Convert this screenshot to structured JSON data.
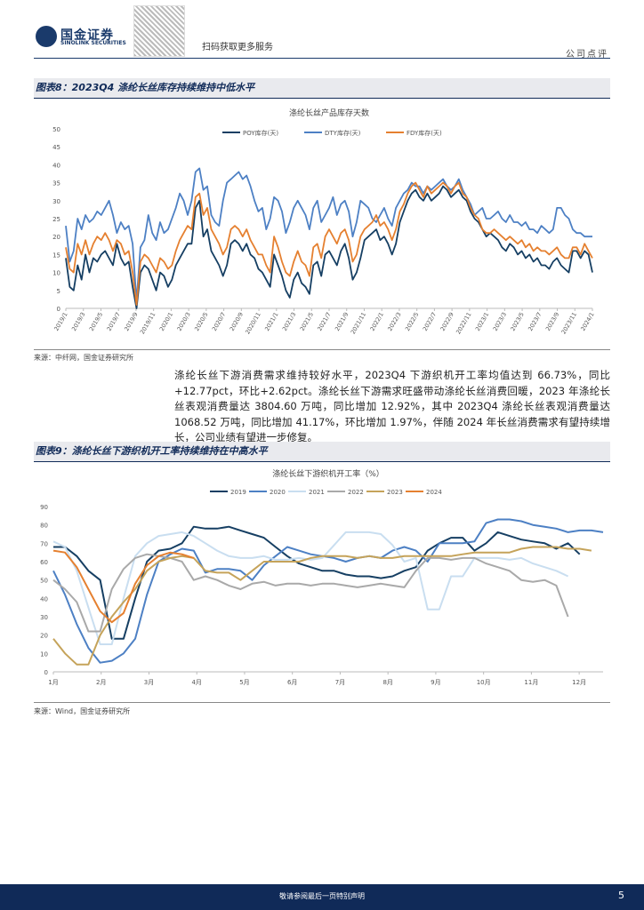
{
  "header": {
    "logo_cn": "国金证券",
    "logo_en": "SINOLINK SECURITIES",
    "qr_label": "扫码获取更多服务",
    "doc_type": "公司点评"
  },
  "figure8": {
    "title": "图表8：2023Q4 涤纶长丝库存持续维持中低水平",
    "source": "来源：中纤网，国金证券研究所"
  },
  "figure9": {
    "title": "图表9：涤纶长丝下游织机开工率持续维持在中高水平",
    "source": "来源：Wind，国金证券研究所"
  },
  "paragraph": "涤纶长丝下游消费需求维持较好水平，2023Q4 下游织机开工率均值达到 66.73%，同比+12.77pct，环比+2.62pct。涤纶长丝下游需求旺盛带动涤纶长丝消费回暖，2023 年涤纶长丝表观消费量达 3804.60 万吨，同比增加 12.92%，其中 2023Q4 涤纶长丝表观消费量达 1068.52 万吨，同比增加 41.17%，环比增加 1.97%，伴随 2024 年长丝消费需求有望持续增长，公司业绩有望进一步修复。",
  "footer": {
    "disclaimer": "敬请参阅最后一页特别声明",
    "page": "5"
  },
  "chart_data": [
    {
      "type": "line",
      "title": "涤纶长丝产品库存天数",
      "ylim": [
        0,
        50
      ],
      "yticks": [
        0,
        5,
        10,
        15,
        20,
        25,
        30,
        35,
        40,
        45,
        50
      ],
      "x_ticks": [
        "2019/1",
        "2019/3",
        "2019/5",
        "2019/7",
        "2019/9",
        "2019/11",
        "2020/1",
        "2020/3",
        "2020/5",
        "2020/7",
        "2020/9",
        "2020/11",
        "2021/1",
        "2021/3",
        "2021/5",
        "2021/7",
        "2021/9",
        "2021/11",
        "2022/1",
        "2022/3",
        "2022/5",
        "2022/7",
        "2022/9",
        "2022/11",
        "2023/1",
        "2023/3",
        "2023/5",
        "2023/7",
        "2023/9",
        "2023/11",
        "2024/1"
      ],
      "series": [
        {
          "name": "POY库存(天)",
          "color": "#163f63",
          "values": [
            14,
            6,
            5,
            12,
            8,
            15,
            10,
            14,
            13,
            15,
            16,
            14,
            12,
            18,
            14,
            12,
            13,
            6,
            0,
            10,
            12,
            11,
            8,
            5,
            10,
            9,
            6,
            8,
            12,
            14,
            16,
            18,
            18,
            28,
            30,
            20,
            22,
            16,
            14,
            12,
            9,
            12,
            18,
            19,
            18,
            16,
            18,
            15,
            14,
            11,
            10,
            8,
            6,
            15,
            12,
            9,
            5,
            3,
            8,
            10,
            7,
            6,
            4,
            12,
            13,
            9,
            15,
            16,
            14,
            12,
            16,
            18,
            14,
            8,
            10,
            14,
            19,
            20,
            21,
            22,
            19,
            20,
            18,
            15,
            18,
            24,
            27,
            30,
            32,
            33,
            31,
            30,
            32,
            30,
            31,
            32,
            34,
            33,
            31,
            32,
            33,
            31,
            30,
            27,
            25,
            24,
            22,
            20,
            21,
            20,
            19,
            17,
            16,
            18,
            17,
            15,
            16,
            14,
            15,
            13,
            14,
            12,
            12,
            11,
            13,
            14,
            12,
            11,
            10,
            16,
            16,
            14,
            16,
            15,
            10
          ]
        },
        {
          "name": "DTY库存(天)",
          "color": "#4d80c4",
          "values": [
            23,
            13,
            16,
            25,
            22,
            26,
            24,
            25,
            27,
            26,
            28,
            30,
            26,
            21,
            24,
            22,
            23,
            18,
            2,
            17,
            19,
            26,
            21,
            19,
            24,
            21,
            22,
            25,
            28,
            32,
            30,
            26,
            30,
            38,
            39,
            33,
            34,
            26,
            24,
            23,
            30,
            35,
            36,
            37,
            38,
            36,
            37,
            34,
            30,
            27,
            28,
            22,
            25,
            31,
            30,
            27,
            21,
            24,
            28,
            30,
            28,
            26,
            22,
            28,
            30,
            24,
            26,
            28,
            31,
            26,
            29,
            30,
            27,
            20,
            24,
            30,
            29,
            28,
            25,
            24,
            26,
            28,
            25,
            23,
            28,
            30,
            32,
            33,
            35,
            34,
            34,
            32,
            34,
            33,
            34,
            35,
            36,
            34,
            33,
            34,
            36,
            33,
            31,
            29,
            26,
            27,
            28,
            25,
            25,
            26,
            27,
            25,
            24,
            26,
            24,
            24,
            23,
            24,
            22,
            22,
            21,
            23,
            22,
            21,
            22,
            28,
            28,
            26,
            25,
            22,
            21,
            21,
            20,
            20,
            20
          ]
        },
        {
          "name": "FDY库存(天)",
          "color": "#e58030",
          "values": [
            17,
            11,
            10,
            18,
            15,
            19,
            15,
            18,
            20,
            19,
            21,
            19,
            16,
            19,
            18,
            15,
            16,
            10,
            1,
            13,
            15,
            14,
            12,
            10,
            14,
            13,
            11,
            12,
            16,
            19,
            21,
            23,
            22,
            31,
            32,
            26,
            28,
            22,
            20,
            18,
            15,
            17,
            22,
            23,
            22,
            20,
            22,
            19,
            17,
            15,
            15,
            12,
            10,
            20,
            17,
            13,
            10,
            9,
            13,
            16,
            13,
            12,
            9,
            17,
            18,
            14,
            20,
            22,
            20,
            18,
            21,
            22,
            19,
            13,
            15,
            20,
            22,
            23,
            24,
            26,
            23,
            24,
            22,
            19,
            22,
            27,
            29,
            32,
            34,
            35,
            33,
            31,
            34,
            32,
            33,
            34,
            35,
            34,
            32,
            34,
            35,
            32,
            31,
            28,
            26,
            25,
            22,
            21,
            21,
            22,
            21,
            20,
            19,
            20,
            19,
            18,
            19,
            17,
            18,
            16,
            17,
            16,
            16,
            15,
            16,
            17,
            15,
            14,
            14,
            17,
            17,
            15,
            18,
            16,
            14
          ]
        }
      ]
    },
    {
      "type": "line",
      "title": "涤纶长丝下游织机开工率（%）",
      "ylim": [
        0,
        90
      ],
      "yticks": [
        0,
        10,
        20,
        30,
        40,
        50,
        60,
        70,
        80,
        90
      ],
      "x_ticks": [
        "1月",
        "2月",
        "3月",
        "4月",
        "5月",
        "6月",
        "7月",
        "8月",
        "9月",
        "10月",
        "11月",
        "12月"
      ],
      "series": [
        {
          "name": "2019",
          "color": "#163f63",
          "values": [
            68,
            68,
            63,
            55,
            50,
            18,
            18,
            40,
            60,
            66,
            67,
            70,
            79,
            78,
            78,
            79,
            77,
            75,
            73,
            68,
            63,
            59,
            57,
            55,
            55,
            53,
            52,
            52,
            51,
            52,
            55,
            57,
            66,
            70,
            73,
            73,
            66,
            70,
            76,
            74,
            72,
            71,
            70,
            67,
            70,
            64
          ]
        },
        {
          "name": "2020",
          "color": "#4d80c4",
          "values": [
            55,
            42,
            26,
            13,
            5,
            6,
            10,
            18,
            42,
            60,
            64,
            67,
            66,
            54,
            56,
            56,
            55,
            50,
            58,
            63,
            68,
            66,
            64,
            63,
            62,
            60,
            62,
            63,
            62,
            66,
            68,
            66,
            60,
            70,
            70,
            70,
            71,
            81,
            83,
            83,
            82,
            80,
            79,
            78,
            76,
            77,
            77,
            76
          ]
        },
        {
          "name": "2021",
          "color": "#c9def0",
          "values": [
            71,
            68,
            55,
            35,
            15,
            15,
            40,
            63,
            70,
            74,
            75,
            76,
            74,
            70,
            66,
            63,
            62,
            62,
            63,
            61,
            61,
            62,
            61,
            62,
            69,
            76,
            76,
            76,
            75,
            69,
            60,
            62,
            34,
            34,
            52,
            52,
            62,
            62,
            62,
            61,
            62,
            59,
            57,
            55,
            52
          ]
        },
        {
          "name": "2022",
          "color": "#a9a9a9",
          "values": [
            50,
            45,
            38,
            22,
            22,
            45,
            56,
            62,
            64,
            63,
            62,
            60,
            50,
            52,
            50,
            47,
            45,
            48,
            49,
            47,
            48,
            48,
            47,
            48,
            48,
            47,
            46,
            47,
            48,
            47,
            46,
            55,
            62,
            62,
            61,
            62,
            62,
            59,
            57,
            55,
            50,
            49,
            50,
            47,
            30
          ]
        },
        {
          "name": "2023",
          "color": "#c5a35a",
          "values": [
            18,
            10,
            4,
            4,
            20,
            30,
            38,
            45,
            55,
            60,
            62,
            63,
            62,
            55,
            54,
            54,
            50,
            55,
            60,
            60,
            60,
            60,
            62,
            63,
            63,
            63,
            62,
            63,
            62,
            62,
            63,
            63,
            63,
            63,
            63,
            64,
            65,
            65,
            65,
            65,
            67,
            68,
            68,
            68,
            67,
            67,
            66
          ]
        },
        {
          "name": "2024",
          "color": "#e58030",
          "values": [
            66,
            65,
            57,
            45,
            33,
            27,
            32,
            48,
            58,
            63,
            65,
            64,
            62
          ]
        }
      ]
    }
  ]
}
